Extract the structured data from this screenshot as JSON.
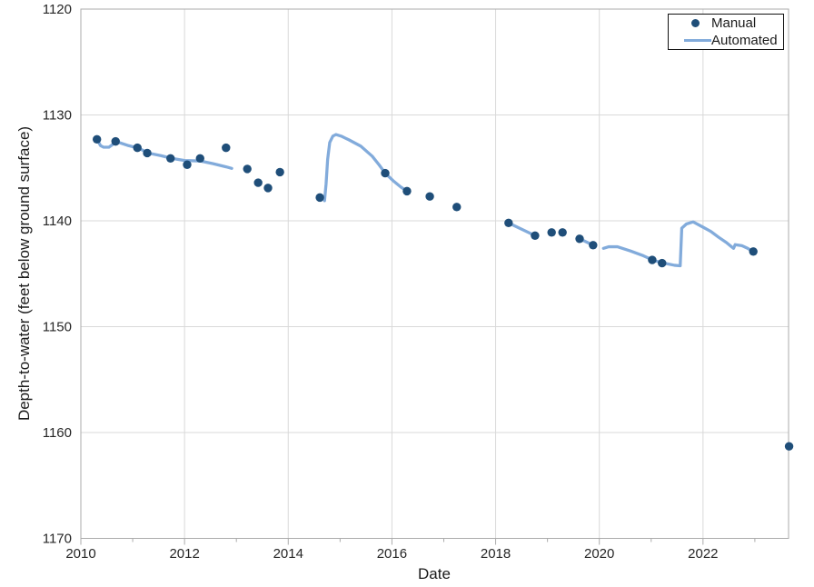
{
  "chart_data": {
    "type": "scatter",
    "title": "",
    "xlabel": "Date",
    "ylabel": "Depth-to-water (feet below ground surface)",
    "xlim": [
      2010,
      2023.65
    ],
    "ylim": [
      1120,
      1170
    ],
    "y_axis_direction": "increasing-downward",
    "grid": {
      "horizontal": true,
      "vertical": true,
      "color": "#D9D9D9"
    },
    "axis_color": "#ABABAB",
    "text_color": "#262626",
    "x_major_ticks": {
      "values": [
        2010,
        2012,
        2014,
        2016,
        2018,
        2020,
        2022
      ],
      "labels": [
        "2010",
        "2012",
        "2014",
        "2016",
        "2018",
        "2020",
        "2022"
      ]
    },
    "x_minor_ticks": [
      2011,
      2013,
      2015,
      2017,
      2019,
      2021,
      2023
    ],
    "y_ticks": {
      "values": [
        1120,
        1130,
        1140,
        1150,
        1160,
        1170
      ],
      "labels": [
        "1120",
        "1130",
        "1140",
        "1150",
        "1160",
        "1170"
      ]
    },
    "legend": {
      "position": "top-right",
      "entries": [
        {
          "label": "Manual",
          "marker": "dot",
          "color": "#1F4E79"
        },
        {
          "label": "Automated",
          "marker": "line",
          "color": "#82ABDB"
        }
      ]
    },
    "series": [
      {
        "name": "Manual",
        "type": "scatter",
        "marker": "circle",
        "marker_radius": 4.7,
        "color": "#1F4E79",
        "points": [
          [
            2010.31,
            1132.3
          ],
          [
            2010.67,
            1132.5
          ],
          [
            2011.09,
            1133.1
          ],
          [
            2011.28,
            1133.6
          ],
          [
            2011.73,
            1134.1
          ],
          [
            2012.05,
            1134.7
          ],
          [
            2012.3,
            1134.1
          ],
          [
            2012.8,
            1133.1
          ],
          [
            2013.21,
            1135.1
          ],
          [
            2013.42,
            1136.4
          ],
          [
            2013.61,
            1136.9
          ],
          [
            2013.84,
            1135.4
          ],
          [
            2014.61,
            1137.8
          ],
          [
            2015.87,
            1135.5
          ],
          [
            2016.29,
            1137.2
          ],
          [
            2016.73,
            1137.7
          ],
          [
            2017.25,
            1138.7
          ],
          [
            2018.25,
            1140.2
          ],
          [
            2018.76,
            1141.4
          ],
          [
            2019.08,
            1141.1
          ],
          [
            2019.29,
            1141.1
          ],
          [
            2019.62,
            1141.7
          ],
          [
            2019.88,
            1142.3
          ],
          [
            2021.02,
            1143.7
          ],
          [
            2021.21,
            1144.0
          ],
          [
            2022.97,
            1142.9
          ],
          [
            2023.66,
            1161.3
          ]
        ]
      },
      {
        "name": "Automated",
        "type": "line",
        "color": "#82ABDB",
        "line_width": 3.3,
        "segments": [
          [
            [
              2010.31,
              1132.3
            ],
            [
              2010.38,
              1132.9
            ],
            [
              2010.44,
              1133.05
            ],
            [
              2010.54,
              1133.05
            ],
            [
              2010.61,
              1132.8
            ],
            [
              2010.67,
              1132.5
            ],
            [
              2010.92,
              1132.9
            ],
            [
              2011.12,
              1133.15
            ],
            [
              2011.3,
              1133.6
            ],
            [
              2011.55,
              1133.85
            ],
            [
              2011.75,
              1134.1
            ],
            [
              2012.0,
              1134.3
            ],
            [
              2012.3,
              1134.35
            ],
            [
              2012.55,
              1134.6
            ],
            [
              2012.8,
              1134.9
            ],
            [
              2012.91,
              1135.05
            ]
          ],
          [
            [
              2014.7,
              1138.1
            ],
            [
              2014.73,
              1136.5
            ],
            [
              2014.76,
              1134.2
            ],
            [
              2014.8,
              1132.6
            ],
            [
              2014.86,
              1132.0
            ],
            [
              2014.92,
              1131.85
            ],
            [
              2015.02,
              1132.0
            ],
            [
              2015.17,
              1132.35
            ],
            [
              2015.4,
              1132.95
            ],
            [
              2015.62,
              1133.9
            ],
            [
              2015.75,
              1134.7
            ],
            [
              2015.87,
              1135.5
            ],
            [
              2016.02,
              1136.2
            ],
            [
              2016.17,
              1136.8
            ],
            [
              2016.29,
              1137.2
            ]
          ],
          [
            [
              2018.25,
              1140.2
            ],
            [
              2018.76,
              1141.4
            ]
          ],
          [
            [
              2019.62,
              1141.7
            ],
            [
              2019.88,
              1142.3
            ]
          ],
          [
            [
              2020.08,
              1142.6
            ],
            [
              2020.18,
              1142.45
            ],
            [
              2020.35,
              1142.45
            ],
            [
              2020.6,
              1142.85
            ],
            [
              2020.85,
              1143.3
            ],
            [
              2021.05,
              1143.75
            ],
            [
              2021.25,
              1144.0
            ],
            [
              2021.45,
              1144.2
            ],
            [
              2021.56,
              1144.25
            ],
            [
              2021.59,
              1140.7
            ],
            [
              2021.68,
              1140.3
            ],
            [
              2021.81,
              1140.1
            ],
            [
              2022.0,
              1140.6
            ],
            [
              2022.15,
              1141.0
            ],
            [
              2022.3,
              1141.55
            ],
            [
              2022.45,
              1142.05
            ],
            [
              2022.55,
              1142.45
            ],
            [
              2022.59,
              1142.6
            ],
            [
              2022.62,
              1142.25
            ],
            [
              2022.75,
              1142.35
            ],
            [
              2022.86,
              1142.6
            ],
            [
              2022.97,
              1142.9
            ]
          ]
        ]
      }
    ]
  }
}
